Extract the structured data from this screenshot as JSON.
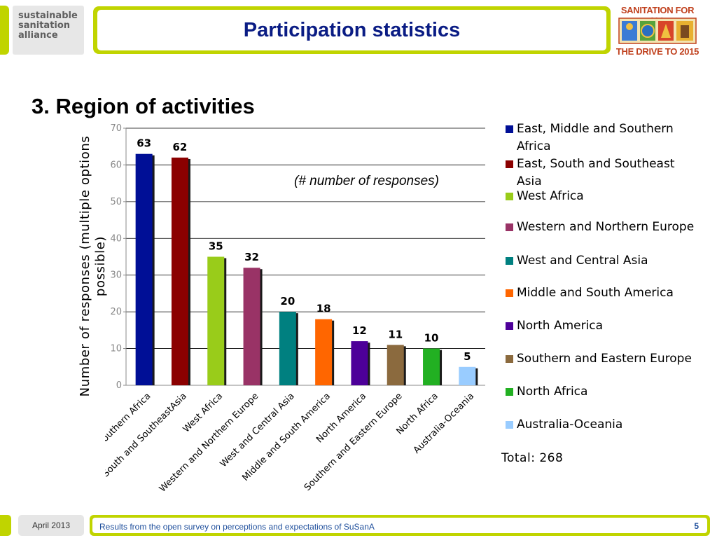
{
  "header": {
    "logo_left_lines": [
      "sustainable",
      "sanitation",
      "alliance"
    ],
    "title": "Participation statistics",
    "logo_right_top": "SANITATION FOR ALL",
    "logo_right_bottom": "THE DRIVE TO 2015"
  },
  "section_heading": "3. Region of activities",
  "note": "(# number of responses)",
  "total": "Total: 268",
  "chart_data": {
    "type": "bar",
    "title": "",
    "ylabel": "Number of responses (multiple options possible)",
    "xlabel": "",
    "ylim": [
      0,
      70
    ],
    "yticks": [
      0,
      10,
      20,
      30,
      40,
      50,
      60,
      70
    ],
    "grid": true,
    "legend_position": "right",
    "categories": [
      "East, Middle and Southern Africa",
      "East, South and SoutheastAsia",
      "West Africa",
      "Western and Northern Europe",
      "West and Central Asia",
      "Middle and South America",
      "North America",
      "Southern and Eastern Europe",
      "North Africa",
      "Australia-Oceania"
    ],
    "values": [
      63,
      62,
      35,
      32,
      20,
      18,
      12,
      11,
      10,
      5
    ],
    "colors": [
      "#000f96",
      "#8b0000",
      "#99cc1a",
      "#993366",
      "#008080",
      "#ff6600",
      "#4d0099",
      "#8b6a3e",
      "#22b022",
      "#99ccff"
    ],
    "legend": [
      {
        "label": "East, Middle and Southern Africa",
        "color": "#000f96"
      },
      {
        "label": "East, South and Southeast Asia",
        "color": "#8b0000"
      },
      {
        "label": "West Africa",
        "color": "#99cc1a"
      },
      {
        "label": "Western and Northern Europe",
        "color": "#993366"
      },
      {
        "label": "West and Central Asia",
        "color": "#008080"
      },
      {
        "label": "Middle and South America",
        "color": "#ff6600"
      },
      {
        "label": "North America",
        "color": "#4d0099"
      },
      {
        "label": "Southern and Eastern Europe",
        "color": "#8b6a3e"
      },
      {
        "label": "North Africa",
        "color": "#22b022"
      },
      {
        "label": "Australia-Oceania",
        "color": "#99ccff"
      }
    ]
  },
  "footer": {
    "date": "April 2013",
    "text": "Results from the open survey on perceptions and expectations of SuSanA",
    "page": "5"
  }
}
